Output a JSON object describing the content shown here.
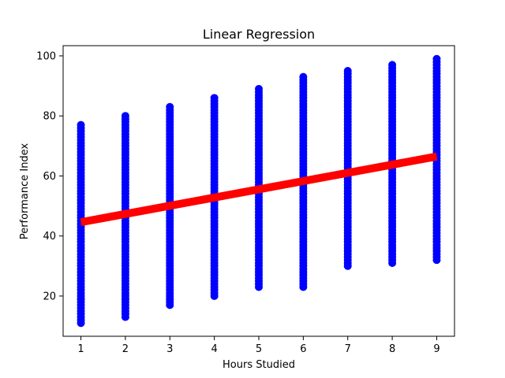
{
  "chart_data": {
    "type": "scatter",
    "title": "Linear Regression",
    "xlabel": "Hours Studied",
    "ylabel": "Performance Index",
    "xlim": [
      0.6,
      9.4
    ],
    "ylim": [
      6.6,
      103.4
    ],
    "xticks": [
      1,
      2,
      3,
      4,
      5,
      6,
      7,
      8,
      9
    ],
    "yticks": [
      20,
      40,
      60,
      80,
      100
    ],
    "grid": false,
    "scatter": {
      "color": "#0000ff",
      "columns": [
        {
          "x": 1,
          "min": 11,
          "max": 77
        },
        {
          "x": 2,
          "min": 13,
          "max": 80
        },
        {
          "x": 3,
          "min": 17,
          "max": 83
        },
        {
          "x": 4,
          "min": 20,
          "max": 86
        },
        {
          "x": 5,
          "min": 23,
          "max": 89
        },
        {
          "x": 6,
          "min": 23,
          "max": 93
        },
        {
          "x": 7,
          "min": 30,
          "max": 95
        },
        {
          "x": 8,
          "min": 31,
          "max": 97
        },
        {
          "x": 9,
          "min": 32,
          "max": 99
        }
      ]
    },
    "regression": {
      "color": "#ff0000",
      "x": [
        1,
        9
      ],
      "y": [
        44.6,
        66.5
      ]
    }
  }
}
